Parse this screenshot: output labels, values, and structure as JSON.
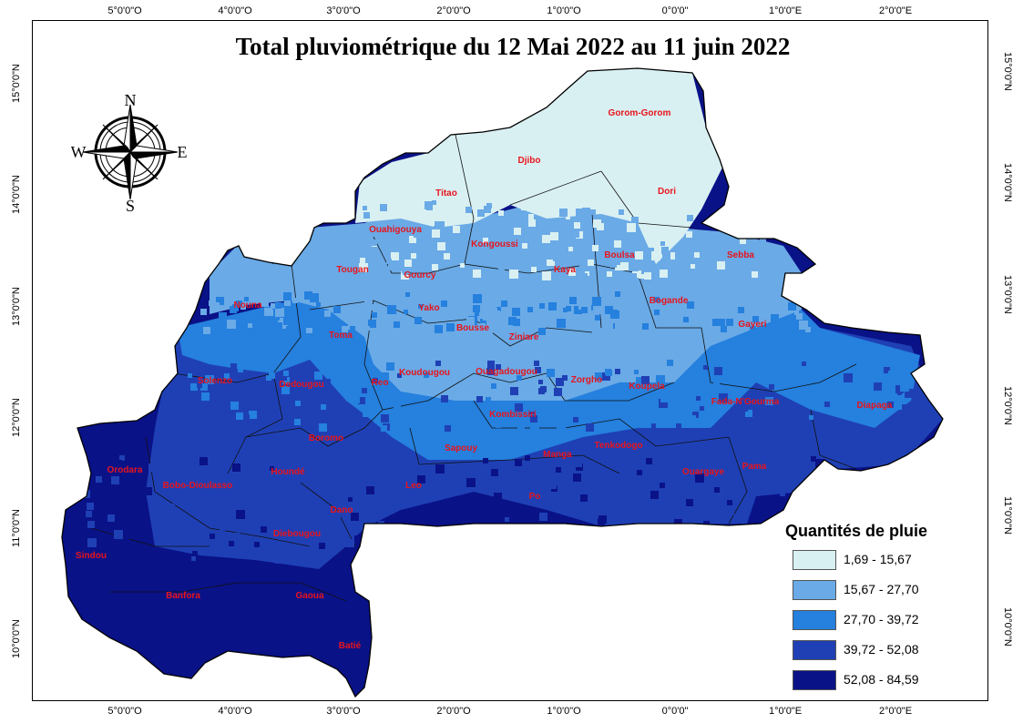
{
  "title": "Total pluviométrique du 12 Mai 2022 au 11 juin 2022",
  "longitude_ticks": [
    "5°0'0\"O",
    "4°0'0\"O",
    "3°0'0\"O",
    "2°0'0\"O",
    "1°0'0\"O",
    "0°0'0\"",
    "1°0'0\"E",
    "2°0'0\"E"
  ],
  "latitude_ticks": [
    "15°0'0\"N",
    "14°0'0\"N",
    "13°0'0\"N",
    "12°0'0\"N",
    "11°0'0\"N",
    "10°0'0\"N"
  ],
  "compass": {
    "n": "N",
    "s": "S",
    "e": "E",
    "w": "W"
  },
  "legend": {
    "title": "Quantités de pluie",
    "classes": [
      {
        "label": "1,69 - 15,67",
        "color": "#d9f0f2"
      },
      {
        "label": "15,67 - 27,70",
        "color": "#6aaae6"
      },
      {
        "label": "27,70 - 39,72",
        "color": "#2580de"
      },
      {
        "label": "39,72 - 52,08",
        "color": "#1f40b5"
      },
      {
        "label": "52,08 - 84,59",
        "color": "#0a1288"
      }
    ]
  },
  "stations": [
    "Gorom-Gorom",
    "Djibo",
    "Titao",
    "Dori",
    "Ouahigouya",
    "Kongoussi",
    "Sebba",
    "Boulsa",
    "Tougan",
    "Gourcy",
    "Kaya",
    "Nouna",
    "Yako",
    "Bogande",
    "Gayeri",
    "Toma",
    "Bousse",
    "Ziniare",
    "Solenzo",
    "Dedougou",
    "Reo",
    "Koudougou",
    "Ouagadougou",
    "Zorgho",
    "Koupela",
    "Fada-N'Gourma",
    "Diapaga",
    "Kombissiri",
    "Boromo",
    "Tenkodogo",
    "Sapouy",
    "Manga",
    "Orodara",
    "Houndé",
    "Ouargaye",
    "Pama",
    "Bobo-Dioulasso",
    "Leo",
    "Po",
    "Dano",
    "Diebougou",
    "Sindou",
    "Banfora",
    "Gaoua",
    "Batié"
  ]
}
